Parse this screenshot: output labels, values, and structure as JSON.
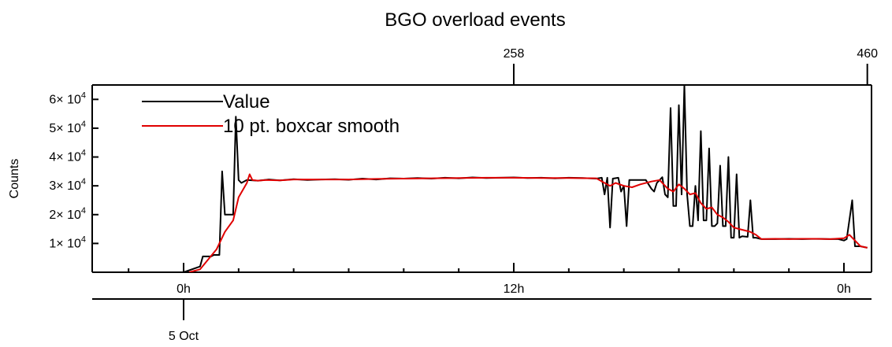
{
  "chart_data": {
    "type": "line",
    "title": "BGO overload events",
    "ylabel": "Counts",
    "xlabel": "",
    "x_unit": "hours relative to 5 Oct 00:00",
    "xlim": [
      -2.75,
      20.25
    ],
    "ylim": [
      0,
      65000
    ],
    "grid": false,
    "legend": {
      "placement": "top-left"
    },
    "y_ticks": [
      {
        "value": 10000,
        "mant": "1",
        "exp": "4"
      },
      {
        "value": 20000,
        "mant": "2",
        "exp": "4"
      },
      {
        "value": 30000,
        "mant": "3",
        "exp": "4"
      },
      {
        "value": 40000,
        "mant": "4",
        "exp": "4"
      },
      {
        "value": 50000,
        "mant": "5",
        "exp": "4"
      },
      {
        "value": 60000,
        "mant": "6",
        "exp": "4"
      }
    ],
    "x_major_ticks": [
      {
        "value": 0,
        "label": "0h"
      },
      {
        "value": 12,
        "label": "12h"
      },
      {
        "value": 24,
        "label": "0h"
      }
    ],
    "x_minor_step": 2,
    "top_axis": {
      "ticks": [
        {
          "value": 12,
          "label": "258"
        },
        {
          "value": 24.85,
          "label": "460"
        }
      ]
    },
    "date_axis": {
      "ticks": [
        {
          "value": 0,
          "label": "5 Oct"
        }
      ]
    },
    "series": [
      {
        "name": "Value",
        "color": "#000000",
        "points": [
          [
            0.0,
            0
          ],
          [
            0.6,
            2000
          ],
          [
            0.7,
            5500
          ],
          [
            1.0,
            5500
          ],
          [
            1.1,
            6000
          ],
          [
            1.3,
            6000
          ],
          [
            1.4,
            35000
          ],
          [
            1.5,
            20000
          ],
          [
            1.7,
            20000
          ],
          [
            1.8,
            20000
          ],
          [
            1.9,
            54000
          ],
          [
            2.0,
            32000
          ],
          [
            2.1,
            31000
          ],
          [
            2.3,
            32000
          ],
          [
            2.7,
            31800
          ],
          [
            3.1,
            32200
          ],
          [
            3.5,
            31900
          ],
          [
            4.0,
            32300
          ],
          [
            4.5,
            32000
          ],
          [
            5.0,
            32200
          ],
          [
            5.5,
            32300
          ],
          [
            6.0,
            32100
          ],
          [
            6.5,
            32500
          ],
          [
            7.0,
            32200
          ],
          [
            7.5,
            32600
          ],
          [
            8.0,
            32500
          ],
          [
            8.5,
            32700
          ],
          [
            9.0,
            32500
          ],
          [
            9.5,
            32800
          ],
          [
            10.0,
            32600
          ],
          [
            10.5,
            32900
          ],
          [
            11.0,
            32700
          ],
          [
            11.5,
            32800
          ],
          [
            12.0,
            32900
          ],
          [
            12.5,
            32700
          ],
          [
            13.0,
            32800
          ],
          [
            13.5,
            32600
          ],
          [
            14.0,
            32800
          ],
          [
            14.5,
            32700
          ],
          [
            15.0,
            32500
          ],
          [
            15.2,
            32800
          ],
          [
            15.3,
            27000
          ],
          [
            15.4,
            32800
          ],
          [
            15.5,
            15500
          ],
          [
            15.6,
            32500
          ],
          [
            15.8,
            32800
          ],
          [
            15.9,
            28000
          ],
          [
            16.0,
            30000
          ],
          [
            16.1,
            16000
          ],
          [
            16.2,
            32000
          ],
          [
            16.5,
            32000
          ],
          [
            16.7,
            32000
          ],
          [
            16.8,
            32000
          ],
          [
            17.0,
            29000
          ],
          [
            17.1,
            28000
          ],
          [
            17.2,
            31000
          ],
          [
            17.4,
            33000
          ],
          [
            17.5,
            27000
          ],
          [
            17.6,
            26000
          ],
          [
            17.7,
            57000
          ],
          [
            17.8,
            23000
          ],
          [
            17.9,
            23000
          ],
          [
            18.0,
            58000
          ],
          [
            18.1,
            27000
          ],
          [
            18.2,
            65000
          ],
          [
            18.3,
            27000
          ],
          [
            18.4,
            16000
          ],
          [
            18.5,
            16000
          ],
          [
            18.6,
            30000
          ],
          [
            18.7,
            18000
          ],
          [
            18.8,
            49000
          ],
          [
            18.9,
            18000
          ],
          [
            19.0,
            18000
          ],
          [
            19.1,
            43000
          ],
          [
            19.2,
            16000
          ],
          [
            19.3,
            16000
          ],
          [
            19.4,
            17000
          ],
          [
            19.5,
            37000
          ],
          [
            19.6,
            16000
          ],
          [
            19.7,
            16000
          ],
          [
            19.8,
            40000
          ],
          [
            19.9,
            12000
          ],
          [
            20.0,
            12000
          ],
          [
            20.1,
            34000
          ],
          [
            20.2,
            12000
          ],
          [
            20.3,
            12500
          ],
          [
            20.5,
            12300
          ],
          [
            20.6,
            25000
          ],
          [
            20.7,
            12000
          ],
          [
            20.8,
            12000
          ],
          [
            21.0,
            11500
          ],
          [
            21.5,
            11500
          ],
          [
            22.0,
            11600
          ],
          [
            22.5,
            11500
          ],
          [
            23.0,
            11600
          ],
          [
            23.5,
            11500
          ],
          [
            23.8,
            11500
          ],
          [
            24.0,
            11000
          ],
          [
            24.1,
            11500
          ],
          [
            24.3,
            25000
          ],
          [
            24.4,
            9000
          ],
          [
            24.6,
            9000
          ],
          [
            24.85,
            8500
          ]
        ]
      },
      {
        "name": "10 pt. boxcar smooth",
        "color": "#e00000",
        "points": [
          [
            0.2,
            0
          ],
          [
            0.6,
            1000
          ],
          [
            0.9,
            4500
          ],
          [
            1.2,
            8000
          ],
          [
            1.5,
            14000
          ],
          [
            1.8,
            18000
          ],
          [
            2.0,
            26000
          ],
          [
            2.3,
            31000
          ],
          [
            2.4,
            34000
          ],
          [
            2.5,
            32000
          ],
          [
            2.7,
            31800
          ],
          [
            3.0,
            32000
          ],
          [
            3.5,
            31900
          ],
          [
            4.0,
            32200
          ],
          [
            5.0,
            32200
          ],
          [
            6.0,
            32200
          ],
          [
            7.0,
            32400
          ],
          [
            8.0,
            32500
          ],
          [
            9.0,
            32600
          ],
          [
            10.0,
            32700
          ],
          [
            11.0,
            32800
          ],
          [
            12.0,
            32800
          ],
          [
            13.0,
            32700
          ],
          [
            14.0,
            32700
          ],
          [
            15.0,
            32600
          ],
          [
            15.3,
            31000
          ],
          [
            15.5,
            30000
          ],
          [
            15.7,
            31000
          ],
          [
            16.0,
            30000
          ],
          [
            16.3,
            29500
          ],
          [
            16.6,
            30500
          ],
          [
            17.0,
            31500
          ],
          [
            17.3,
            32000
          ],
          [
            17.6,
            29000
          ],
          [
            17.8,
            28000
          ],
          [
            18.0,
            30500
          ],
          [
            18.2,
            29000
          ],
          [
            18.4,
            27000
          ],
          [
            18.6,
            27500
          ],
          [
            18.8,
            24000
          ],
          [
            19.0,
            22000
          ],
          [
            19.2,
            22500
          ],
          [
            19.4,
            20000
          ],
          [
            19.6,
            19000
          ],
          [
            19.8,
            17500
          ],
          [
            20.0,
            15500
          ],
          [
            20.2,
            15000
          ],
          [
            20.4,
            14500
          ],
          [
            20.6,
            14000
          ],
          [
            20.8,
            13000
          ],
          [
            21.0,
            11500
          ],
          [
            21.5,
            11600
          ],
          [
            22.0,
            11500
          ],
          [
            22.5,
            11600
          ],
          [
            23.0,
            11600
          ],
          [
            23.5,
            11500
          ],
          [
            24.0,
            11800
          ],
          [
            24.2,
            13000
          ],
          [
            24.4,
            11000
          ],
          [
            24.6,
            9000
          ],
          [
            24.85,
            8500
          ]
        ]
      }
    ]
  }
}
